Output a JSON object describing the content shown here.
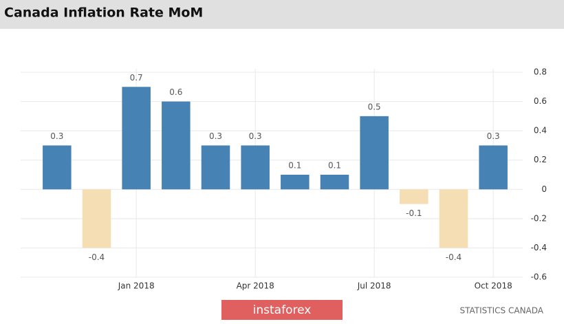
{
  "chart_data": {
    "type": "bar",
    "title": "Canada Inflation Rate MoM",
    "categories": [
      null,
      null,
      "Jan 2018",
      null,
      null,
      "Apr 2018",
      null,
      null,
      "Jul 2018",
      null,
      null,
      "Oct 2018"
    ],
    "values": [
      0.3,
      -0.4,
      0.7,
      0.6,
      0.3,
      0.3,
      0.1,
      0.1,
      0.5,
      -0.1,
      -0.4,
      0.3
    ],
    "color": "#4682b4",
    "negative_color": "#f5deb3",
    "ylim": [
      -0.6,
      0.8
    ],
    "yticks": [
      0.8,
      0.6,
      0.4,
      0.2,
      0,
      -0.2,
      -0.4,
      -0.6
    ],
    "grid": true,
    "source": "STATISTICS CANADA",
    "watermark": "instaforex"
  }
}
